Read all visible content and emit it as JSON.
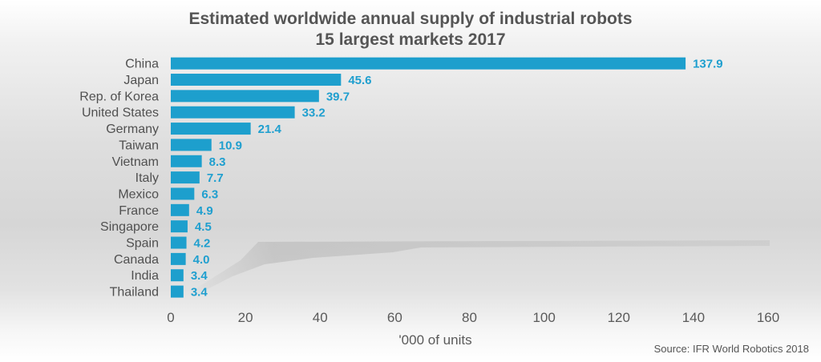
{
  "chart_data": {
    "type": "bar",
    "orientation": "horizontal",
    "title": "Estimated worldwide annual supply of industrial robots",
    "subtitle": "15 largest markets 2017",
    "categories": [
      "China",
      "Japan",
      "Rep. of Korea",
      "United States",
      "Germany",
      "Taiwan",
      "Vietnam",
      "Italy",
      "Mexico",
      "France",
      "Singapore",
      "Spain",
      "Canada",
      "India",
      "Thailand"
    ],
    "values": [
      137.9,
      45.6,
      39.7,
      33.2,
      21.4,
      10.9,
      8.3,
      7.7,
      6.3,
      4.9,
      4.5,
      4.2,
      4.0,
      3.4,
      3.4
    ],
    "value_labels": [
      "137.9",
      "45.6",
      "39.7",
      "33.2",
      "21.4",
      "10.9",
      "8.3",
      "7.7",
      "6.3",
      "4.9",
      "4.5",
      "4.2",
      "4.0",
      "3.4",
      "3.4"
    ],
    "xlabel": "'000 of units",
    "ylabel": "",
    "xlim": [
      0,
      160
    ],
    "xticks": [
      0,
      20,
      40,
      60,
      80,
      100,
      120,
      140,
      160
    ],
    "grid": false,
    "legend": "none",
    "bar_color": "#1d9fcd",
    "label_color": "#1f9fcf",
    "source": "Source: IFR World Robotics 2018"
  }
}
